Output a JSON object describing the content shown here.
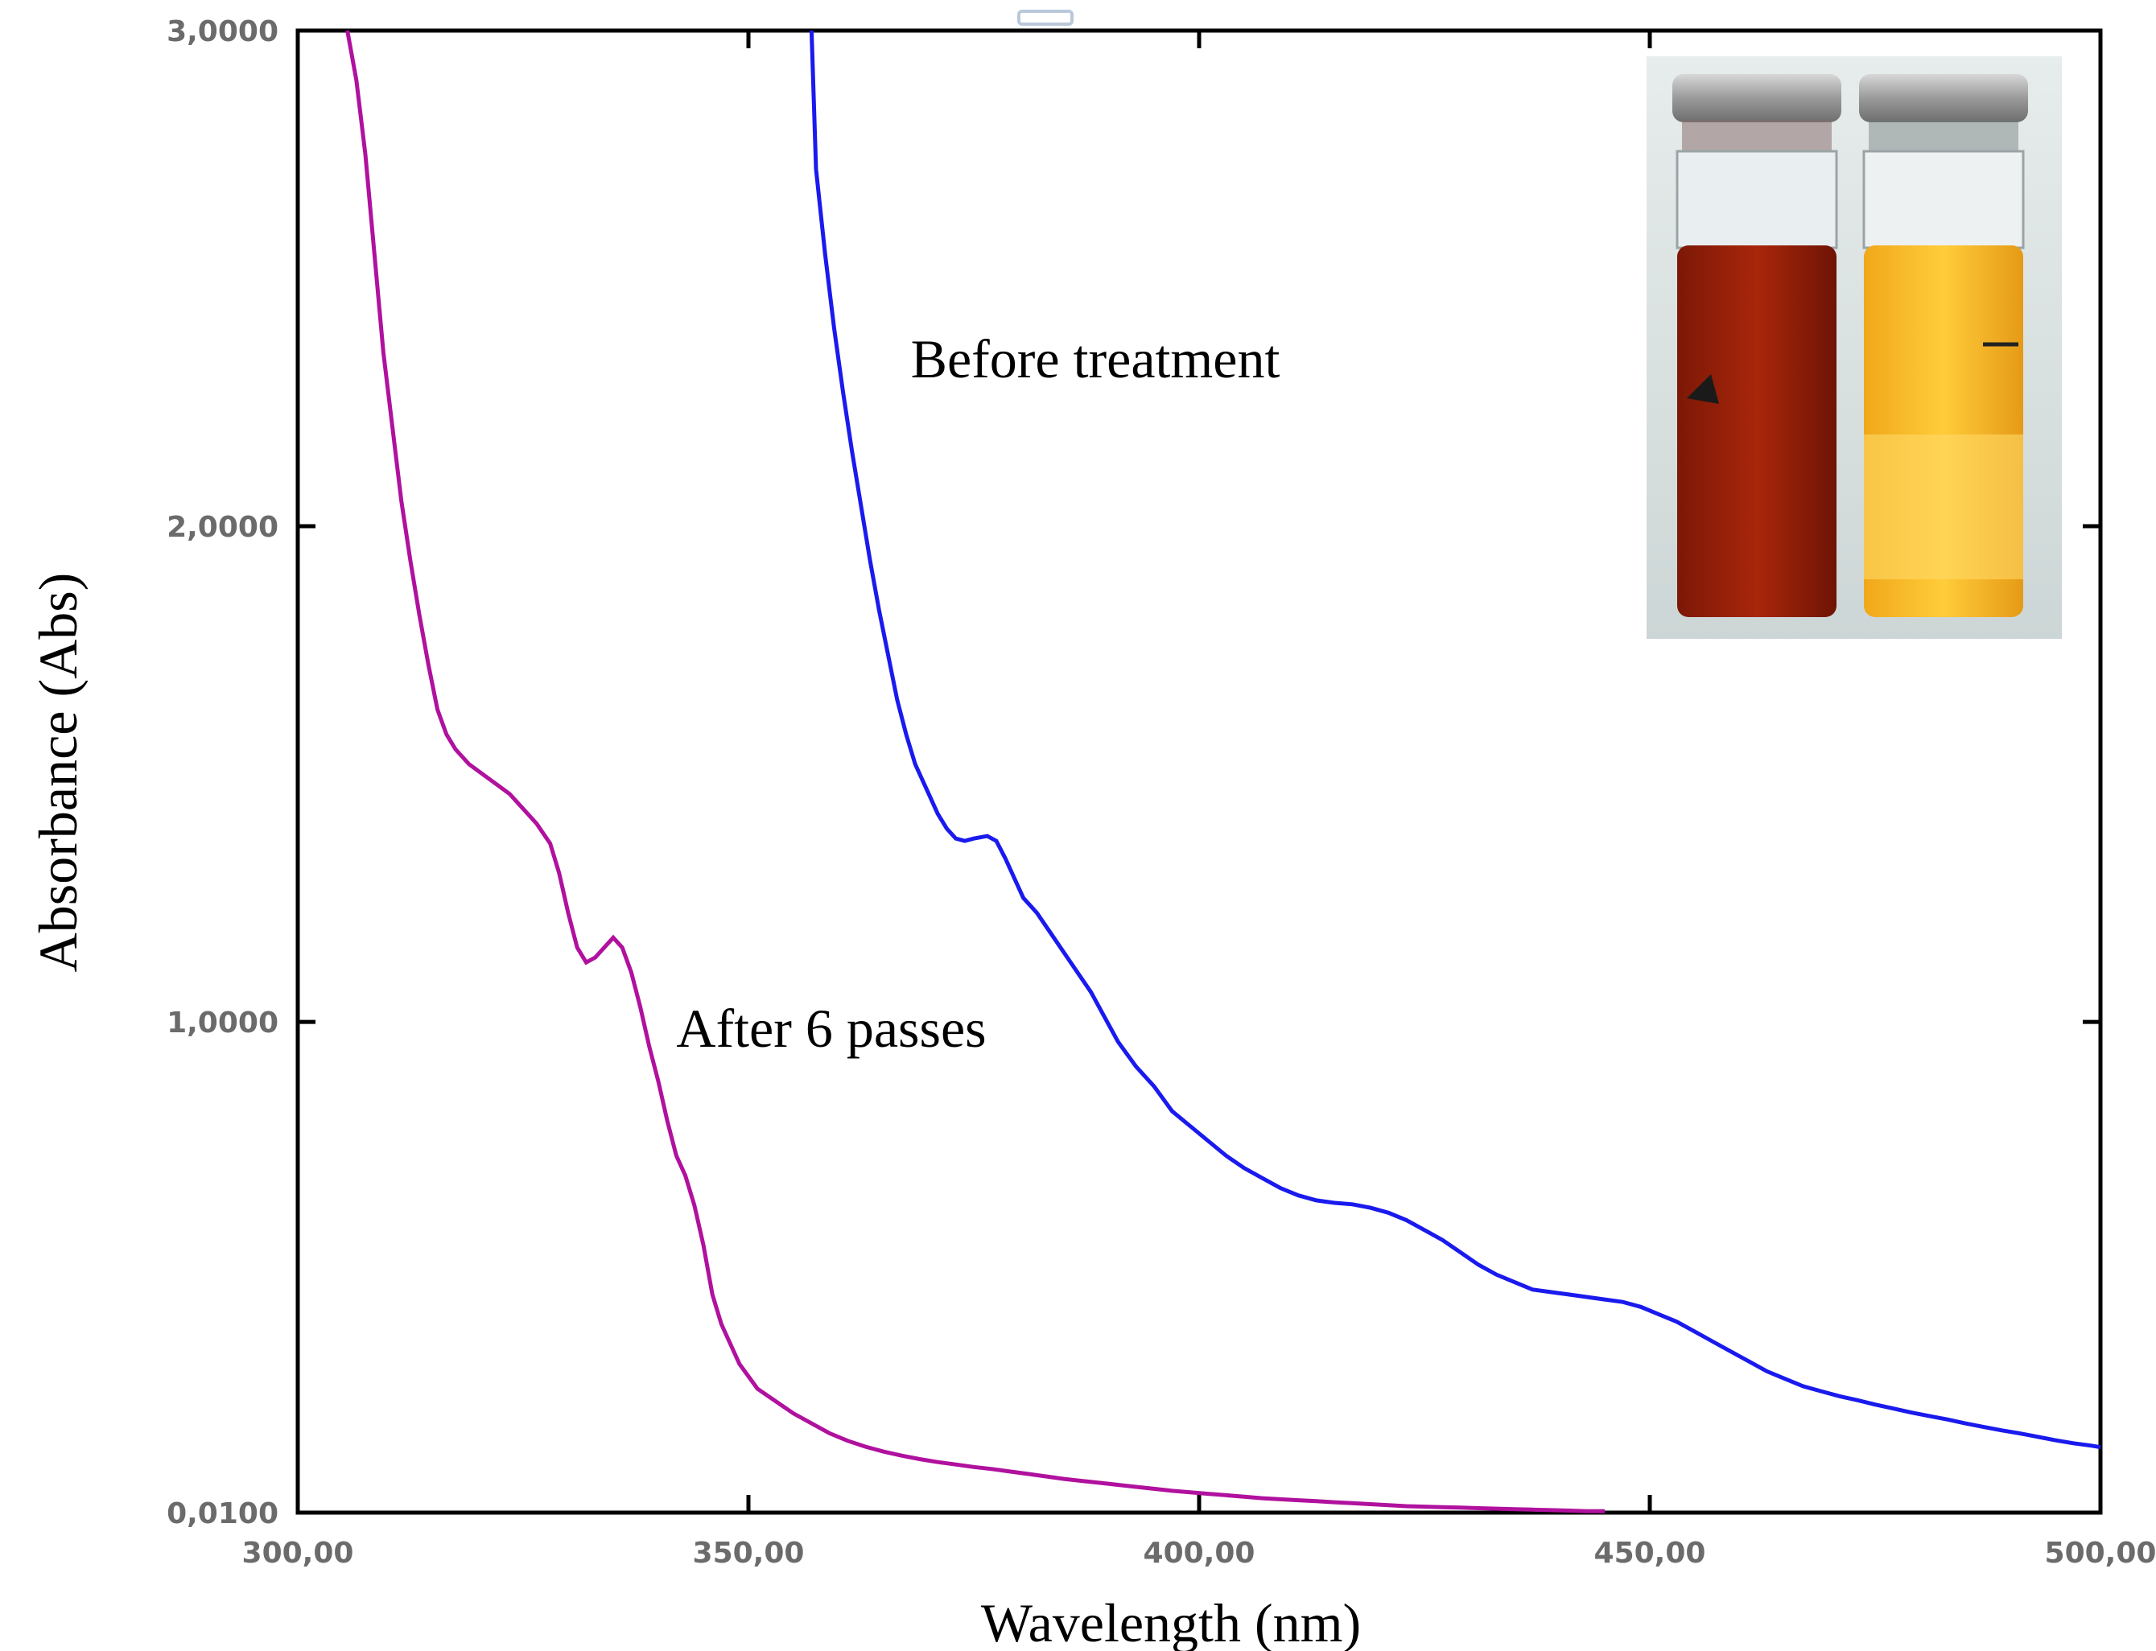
{
  "chart_data": {
    "type": "line",
    "xlabel": "Wavelength (nm)",
    "ylabel": "Absorbance (Abs)",
    "xlim": [
      300,
      500
    ],
    "ylim": [
      0.01,
      3.0
    ],
    "x_ticks": [
      "300,00",
      "350,00",
      "400,00",
      "450,00",
      "500,00"
    ],
    "x_tick_values": [
      300,
      350,
      400,
      450,
      500
    ],
    "y_ticks": [
      "0,0100",
      "1,0000",
      "2,0000",
      "3,0000"
    ],
    "y_tick_values": [
      0.01,
      1.0,
      2.0,
      3.0
    ],
    "grid": false,
    "series": [
      {
        "label": "Before treatment",
        "color": "#1a1aee",
        "points": [
          [
            357,
            3.0
          ],
          [
            357.5,
            2.72
          ],
          [
            358.5,
            2.55
          ],
          [
            359.5,
            2.4
          ],
          [
            360.5,
            2.27
          ],
          [
            361.5,
            2.15
          ],
          [
            362.5,
            2.04
          ],
          [
            363.5,
            1.93
          ],
          [
            364.5,
            1.83
          ],
          [
            365.5,
            1.74
          ],
          [
            366.5,
            1.65
          ],
          [
            367.5,
            1.58
          ],
          [
            368.5,
            1.52
          ],
          [
            370,
            1.46
          ],
          [
            371,
            1.42
          ],
          [
            372,
            1.39
          ],
          [
            373,
            1.37
          ],
          [
            374,
            1.365
          ],
          [
            375,
            1.37
          ],
          [
            376.5,
            1.375
          ],
          [
            377.5,
            1.365
          ],
          [
            378.5,
            1.33
          ],
          [
            379.5,
            1.29
          ],
          [
            380.5,
            1.25
          ],
          [
            382,
            1.22
          ],
          [
            383.5,
            1.18
          ],
          [
            385,
            1.14
          ],
          [
            386.5,
            1.1
          ],
          [
            388,
            1.06
          ],
          [
            389.5,
            1.01
          ],
          [
            391,
            0.96
          ],
          [
            393,
            0.91
          ],
          [
            395,
            0.87
          ],
          [
            397,
            0.82
          ],
          [
            399,
            0.79
          ],
          [
            401,
            0.76
          ],
          [
            403,
            0.73
          ],
          [
            405,
            0.705
          ],
          [
            407,
            0.685
          ],
          [
            409,
            0.665
          ],
          [
            411,
            0.65
          ],
          [
            413,
            0.64
          ],
          [
            415,
            0.635
          ],
          [
            417,
            0.632
          ],
          [
            419,
            0.625
          ],
          [
            421,
            0.615
          ],
          [
            423,
            0.6
          ],
          [
            425,
            0.58
          ],
          [
            427,
            0.56
          ],
          [
            429,
            0.535
          ],
          [
            431,
            0.51
          ],
          [
            433,
            0.49
          ],
          [
            435,
            0.475
          ],
          [
            437,
            0.46
          ],
          [
            439,
            0.455
          ],
          [
            441,
            0.45
          ],
          [
            443,
            0.445
          ],
          [
            445,
            0.44
          ],
          [
            447,
            0.435
          ],
          [
            449,
            0.425
          ],
          [
            451,
            0.41
          ],
          [
            453,
            0.395
          ],
          [
            455,
            0.375
          ],
          [
            457,
            0.355
          ],
          [
            459,
            0.335
          ],
          [
            461,
            0.315
          ],
          [
            463,
            0.295
          ],
          [
            465,
            0.28
          ],
          [
            467,
            0.265
          ],
          [
            469,
            0.255
          ],
          [
            471,
            0.245
          ],
          [
            473,
            0.237
          ],
          [
            475,
            0.228
          ],
          [
            477,
            0.22
          ],
          [
            479,
            0.212
          ],
          [
            481,
            0.205
          ],
          [
            483,
            0.198
          ],
          [
            485,
            0.19
          ],
          [
            487,
            0.183
          ],
          [
            489,
            0.176
          ],
          [
            491,
            0.17
          ],
          [
            493,
            0.163
          ],
          [
            495,
            0.156
          ],
          [
            497,
            0.15
          ],
          [
            499,
            0.145
          ],
          [
            500,
            0.142
          ]
        ]
      },
      {
        "label": "After 6 passes",
        "color": "#b0119e",
        "points": [
          [
            305.5,
            3.0
          ],
          [
            306.5,
            2.9
          ],
          [
            307.5,
            2.75
          ],
          [
            308.5,
            2.55
          ],
          [
            309.5,
            2.35
          ],
          [
            310.5,
            2.2
          ],
          [
            311.5,
            2.05
          ],
          [
            312.5,
            1.93
          ],
          [
            313.5,
            1.82
          ],
          [
            314.5,
            1.72
          ],
          [
            315.5,
            1.63
          ],
          [
            316.5,
            1.58
          ],
          [
            317.5,
            1.55
          ],
          [
            319,
            1.52
          ],
          [
            320.5,
            1.5
          ],
          [
            322,
            1.48
          ],
          [
            323.5,
            1.46
          ],
          [
            325,
            1.43
          ],
          [
            326.5,
            1.4
          ],
          [
            328,
            1.36
          ],
          [
            329,
            1.3
          ],
          [
            330,
            1.22
          ],
          [
            331,
            1.15
          ],
          [
            332,
            1.12
          ],
          [
            333,
            1.13
          ],
          [
            334,
            1.15
          ],
          [
            335,
            1.17
          ],
          [
            336,
            1.15
          ],
          [
            337,
            1.1
          ],
          [
            338,
            1.03
          ],
          [
            339,
            0.95
          ],
          [
            340,
            0.88
          ],
          [
            341,
            0.8
          ],
          [
            342,
            0.73
          ],
          [
            343,
            0.69
          ],
          [
            344,
            0.63
          ],
          [
            345,
            0.55
          ],
          [
            346,
            0.45
          ],
          [
            347,
            0.39
          ],
          [
            348,
            0.35
          ],
          [
            349,
            0.31
          ],
          [
            350,
            0.285
          ],
          [
            351,
            0.26
          ],
          [
            353,
            0.235
          ],
          [
            355,
            0.21
          ],
          [
            357,
            0.19
          ],
          [
            359,
            0.17
          ],
          [
            361,
            0.155
          ],
          [
            363,
            0.143
          ],
          [
            365,
            0.133
          ],
          [
            367,
            0.125
          ],
          [
            369,
            0.118
          ],
          [
            371,
            0.112
          ],
          [
            373,
            0.107
          ],
          [
            375,
            0.102
          ],
          [
            377,
            0.098
          ],
          [
            379,
            0.093
          ],
          [
            381,
            0.088
          ],
          [
            383,
            0.083
          ],
          [
            385,
            0.078
          ],
          [
            387,
            0.074
          ],
          [
            389,
            0.07
          ],
          [
            391,
            0.066
          ],
          [
            393,
            0.062
          ],
          [
            395,
            0.058
          ],
          [
            397,
            0.054
          ],
          [
            399,
            0.051
          ],
          [
            401,
            0.048
          ],
          [
            403,
            0.045
          ],
          [
            405,
            0.042
          ],
          [
            407,
            0.039
          ],
          [
            409,
            0.037
          ],
          [
            411,
            0.035
          ],
          [
            413,
            0.033
          ],
          [
            415,
            0.031
          ],
          [
            417,
            0.029
          ],
          [
            419,
            0.027
          ],
          [
            421,
            0.025
          ],
          [
            423,
            0.023
          ],
          [
            425,
            0.022
          ],
          [
            427,
            0.021
          ],
          [
            429,
            0.02
          ],
          [
            431,
            0.019
          ],
          [
            433,
            0.018
          ],
          [
            435,
            0.017
          ],
          [
            437,
            0.016
          ],
          [
            439,
            0.015
          ],
          [
            441,
            0.014
          ],
          [
            443,
            0.013
          ],
          [
            445,
            0.013
          ]
        ]
      }
    ],
    "annotations": [
      {
        "text": "Before treatment",
        "x": 368,
        "y": 2.3
      },
      {
        "text": "After 6 passes",
        "x": 342,
        "y": 0.95
      }
    ],
    "inset": "photo of two vials: dark red-brown liquid (left) and yellow-orange liquid (right)"
  }
}
